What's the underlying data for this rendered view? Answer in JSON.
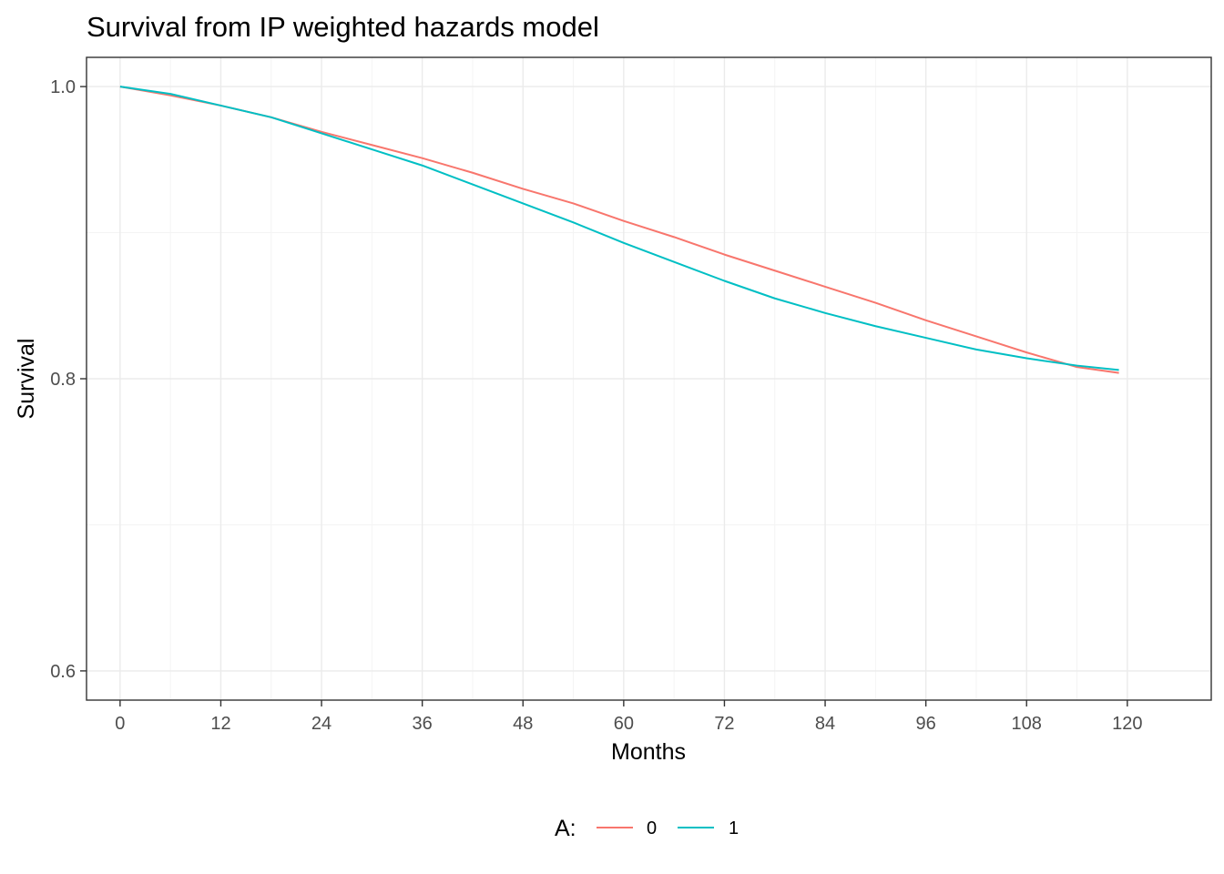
{
  "chart_data": {
    "type": "line",
    "title": "Survival from IP weighted hazards model",
    "xlabel": "Months",
    "ylabel": "Survival",
    "xlim": [
      -4,
      130
    ],
    "ylim": [
      0.58,
      1.02
    ],
    "x_ticks": [
      0,
      12,
      24,
      36,
      48,
      60,
      72,
      84,
      96,
      108,
      120
    ],
    "y_ticks": [
      0.6,
      0.8,
      1.0
    ],
    "y_tick_labels": [
      "0.6",
      "0.8",
      "1.0"
    ],
    "grid": true,
    "legend": {
      "title": "A:",
      "position": "bottom"
    },
    "series": [
      {
        "name": "0",
        "color": "#F8766D",
        "x": [
          0,
          6,
          12,
          18,
          24,
          30,
          36,
          42,
          48,
          54,
          60,
          66,
          72,
          78,
          84,
          90,
          96,
          102,
          108,
          114,
          119
        ],
        "y": [
          1.0,
          0.994,
          0.987,
          0.979,
          0.969,
          0.96,
          0.951,
          0.941,
          0.93,
          0.92,
          0.908,
          0.897,
          0.885,
          0.874,
          0.863,
          0.852,
          0.84,
          0.829,
          0.818,
          0.808,
          0.804
        ]
      },
      {
        "name": "1",
        "color": "#00BFC4",
        "x": [
          0,
          6,
          12,
          18,
          24,
          30,
          36,
          42,
          48,
          54,
          60,
          66,
          72,
          78,
          84,
          90,
          96,
          102,
          108,
          114,
          119
        ],
        "y": [
          1.0,
          0.995,
          0.987,
          0.979,
          0.968,
          0.957,
          0.946,
          0.933,
          0.92,
          0.907,
          0.893,
          0.88,
          0.867,
          0.855,
          0.845,
          0.836,
          0.828,
          0.82,
          0.814,
          0.809,
          0.806
        ]
      }
    ]
  }
}
